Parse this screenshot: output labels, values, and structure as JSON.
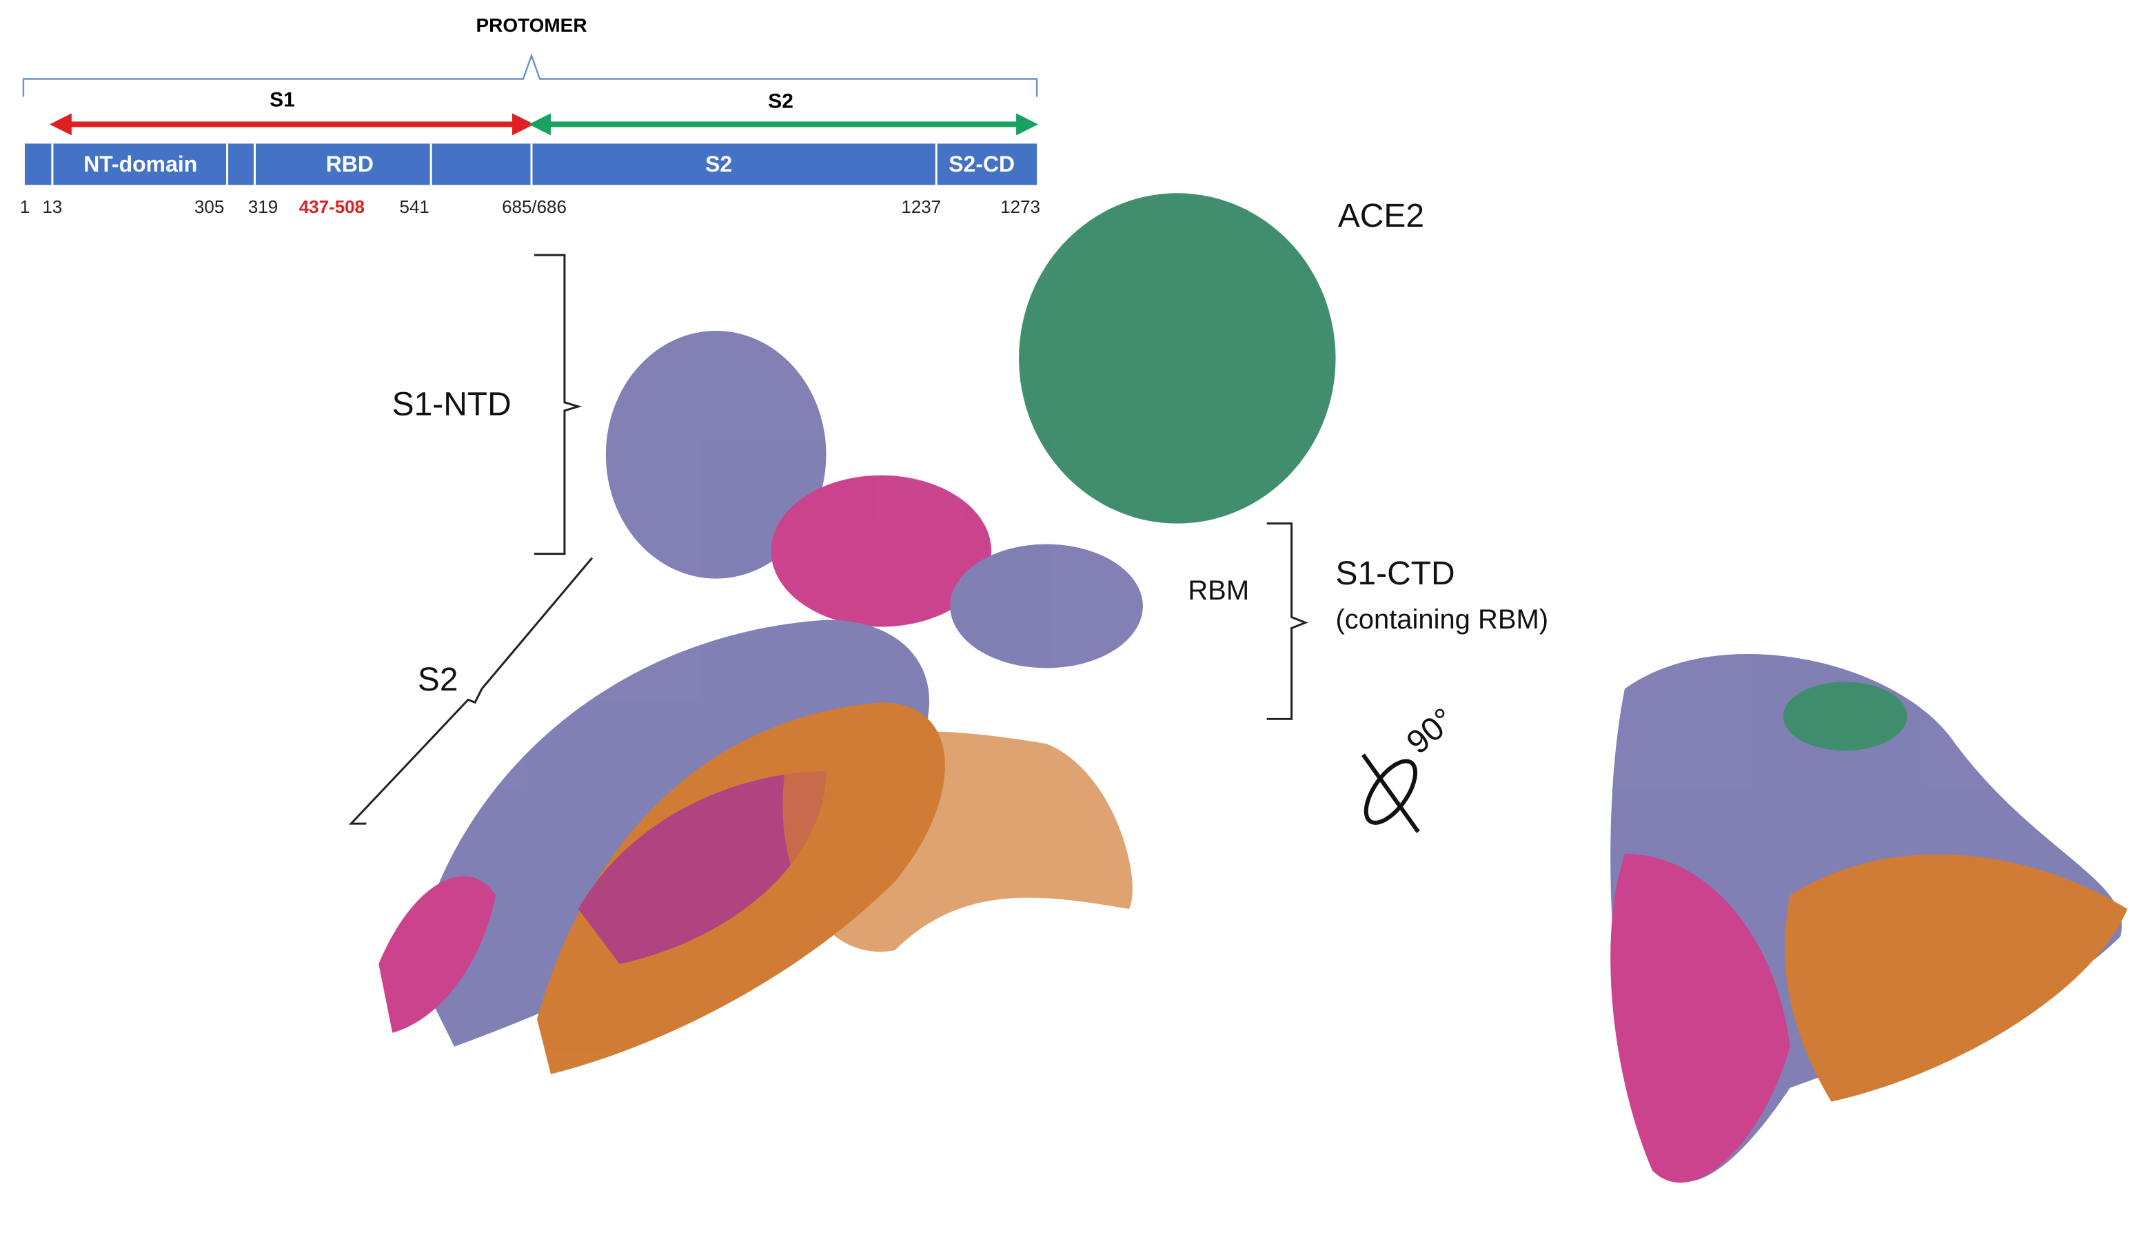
{
  "header": {
    "title": "PROTOMER"
  },
  "segments": [
    {
      "label": "S1"
    },
    {
      "label": "S2"
    }
  ],
  "domains": [
    {
      "label": "NT-domain"
    },
    {
      "label": "RBD"
    },
    {
      "label": "S2"
    },
    {
      "label": "S2-CD"
    }
  ],
  "positions": [
    "1",
    "13",
    "305",
    "319",
    "437-508",
    "541",
    "685/686",
    "1237",
    "1273"
  ],
  "structure_labels": {
    "ace2": "ACE2",
    "s1_ntd": "S1-NTD",
    "s2": "S2",
    "rbm": "RBM",
    "s1_ctd": "S1-CTD",
    "s1_ctd_note": "(containing RBM)",
    "rotation": "90°"
  }
}
